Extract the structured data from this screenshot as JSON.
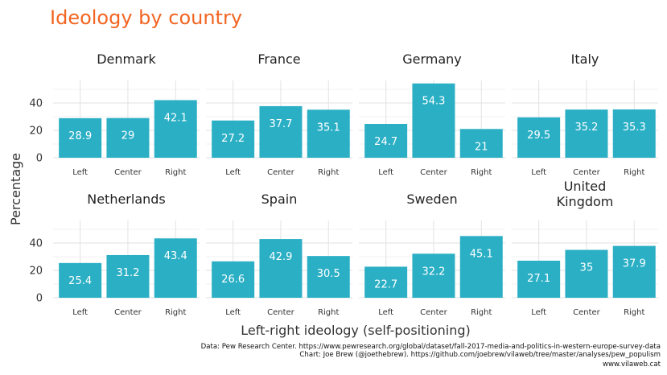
{
  "chart_data": {
    "type": "bar",
    "title": "Ideology by country",
    "xlabel": "Left-right ideology (self-positioning)",
    "ylabel": "Percentage",
    "categories": [
      "Left",
      "Center",
      "Right"
    ],
    "ylim": [
      0,
      55
    ],
    "yticks": [
      0,
      20,
      40
    ],
    "grid": true,
    "bar_color": "#2bafc5",
    "title_color": "#f26522",
    "facets": [
      {
        "name": "Denmark",
        "values": [
          28.9,
          29,
          42.1
        ],
        "labels": [
          "28.9",
          "29",
          "42.1"
        ]
      },
      {
        "name": "France",
        "values": [
          27.2,
          37.7,
          35.1
        ],
        "labels": [
          "27.2",
          "37.7",
          "35.1"
        ]
      },
      {
        "name": "Germany",
        "values": [
          24.7,
          54.3,
          21
        ],
        "labels": [
          "24.7",
          "54.3",
          "21"
        ]
      },
      {
        "name": "Italy",
        "values": [
          29.5,
          35.2,
          35.3
        ],
        "labels": [
          "29.5",
          "35.2",
          "35.3"
        ]
      },
      {
        "name": "Netherlands",
        "values": [
          25.4,
          31.2,
          43.4
        ],
        "labels": [
          "25.4",
          "31.2",
          "43.4"
        ]
      },
      {
        "name": "Spain",
        "values": [
          26.6,
          42.9,
          30.5
        ],
        "labels": [
          "26.6",
          "42.9",
          "30.5"
        ]
      },
      {
        "name": "Sweden",
        "values": [
          22.7,
          32.2,
          45.1
        ],
        "labels": [
          "22.7",
          "32.2",
          "45.1"
        ]
      },
      {
        "name": "United Kingdom",
        "values": [
          27.1,
          35,
          37.9
        ],
        "labels": [
          "27.1",
          "35",
          "37.9"
        ]
      }
    ],
    "caption": [
      "Data: Pew Research Center. https://www.pewresearch.org/global/dataset/fall-2017-media-and-politics-in-western-europe-survey-data",
      "Chart: Joe Brew (@joethebrew). https://github.com/joebrew/vilaweb/tree/master/analyses/pew_populism",
      "www.vilaweb.cat"
    ]
  }
}
